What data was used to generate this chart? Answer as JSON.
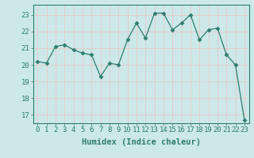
{
  "x": [
    0,
    1,
    2,
    3,
    4,
    5,
    6,
    7,
    8,
    9,
    10,
    11,
    12,
    13,
    14,
    15,
    16,
    17,
    18,
    19,
    20,
    21,
    22,
    23
  ],
  "y": [
    20.2,
    20.1,
    21.1,
    21.2,
    20.9,
    20.7,
    20.6,
    19.3,
    20.1,
    20.0,
    21.5,
    22.5,
    21.6,
    23.1,
    23.1,
    22.1,
    22.5,
    23.0,
    21.5,
    22.1,
    22.2,
    20.6,
    20.0,
    16.7
  ],
  "line_color": "#2e7d6e",
  "marker": "D",
  "marker_size": 2.5,
  "bg_color": "#cce8e8",
  "grid_color": "#e8c8c8",
  "xlabel": "Humidex (Indice chaleur)",
  "ylim": [
    16.5,
    23.6
  ],
  "xlim": [
    -0.5,
    23.5
  ],
  "yticks": [
    17,
    18,
    19,
    20,
    21,
    22,
    23
  ],
  "xticks": [
    0,
    1,
    2,
    3,
    4,
    5,
    6,
    7,
    8,
    9,
    10,
    11,
    12,
    13,
    14,
    15,
    16,
    17,
    18,
    19,
    20,
    21,
    22,
    23
  ],
  "tick_color": "#2e7d6e",
  "label_fontsize": 6.5,
  "xlabel_fontsize": 7.5
}
